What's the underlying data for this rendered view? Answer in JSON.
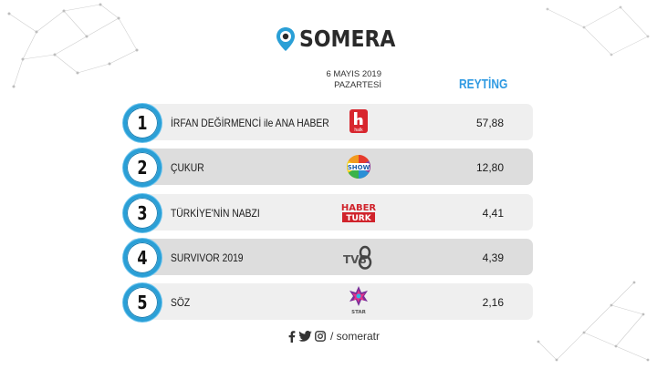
{
  "brand": {
    "name": "SOMERA"
  },
  "header": {
    "date_line1": "6 MAYIS 2019",
    "date_line2": "PAZARTESİ",
    "rating_title": "REYTİNG"
  },
  "rows": [
    {
      "rank": "1",
      "show": "İRFAN DEĞİRMENCİ ile ANA HABER",
      "channel": "haber-tv-logo",
      "rating": "57,88"
    },
    {
      "rank": "2",
      "show": "ÇUKUR",
      "channel": "show-tv-logo",
      "rating": "12,80"
    },
    {
      "rank": "3",
      "show": "TÜRKİYE'NİN NABZI",
      "channel": "haberturk-logo",
      "rating": "4,41"
    },
    {
      "rank": "4",
      "show": "SURVIVOR 2019",
      "channel": "tv8-logo",
      "rating": "4,39"
    },
    {
      "rank": "5",
      "show": "SÖZ",
      "channel": "star-tv-logo",
      "rating": "2,16"
    }
  ],
  "channel_logos": {
    "haberturk_line1": "HABER",
    "haberturk_line2": "TURK",
    "tv8": "TV8",
    "star": "STAR",
    "halk": "halk"
  },
  "footer": {
    "handle": "/ someratr"
  },
  "colors": {
    "accent": "#2a9fd6",
    "rating_title": "#2f9ae2"
  }
}
